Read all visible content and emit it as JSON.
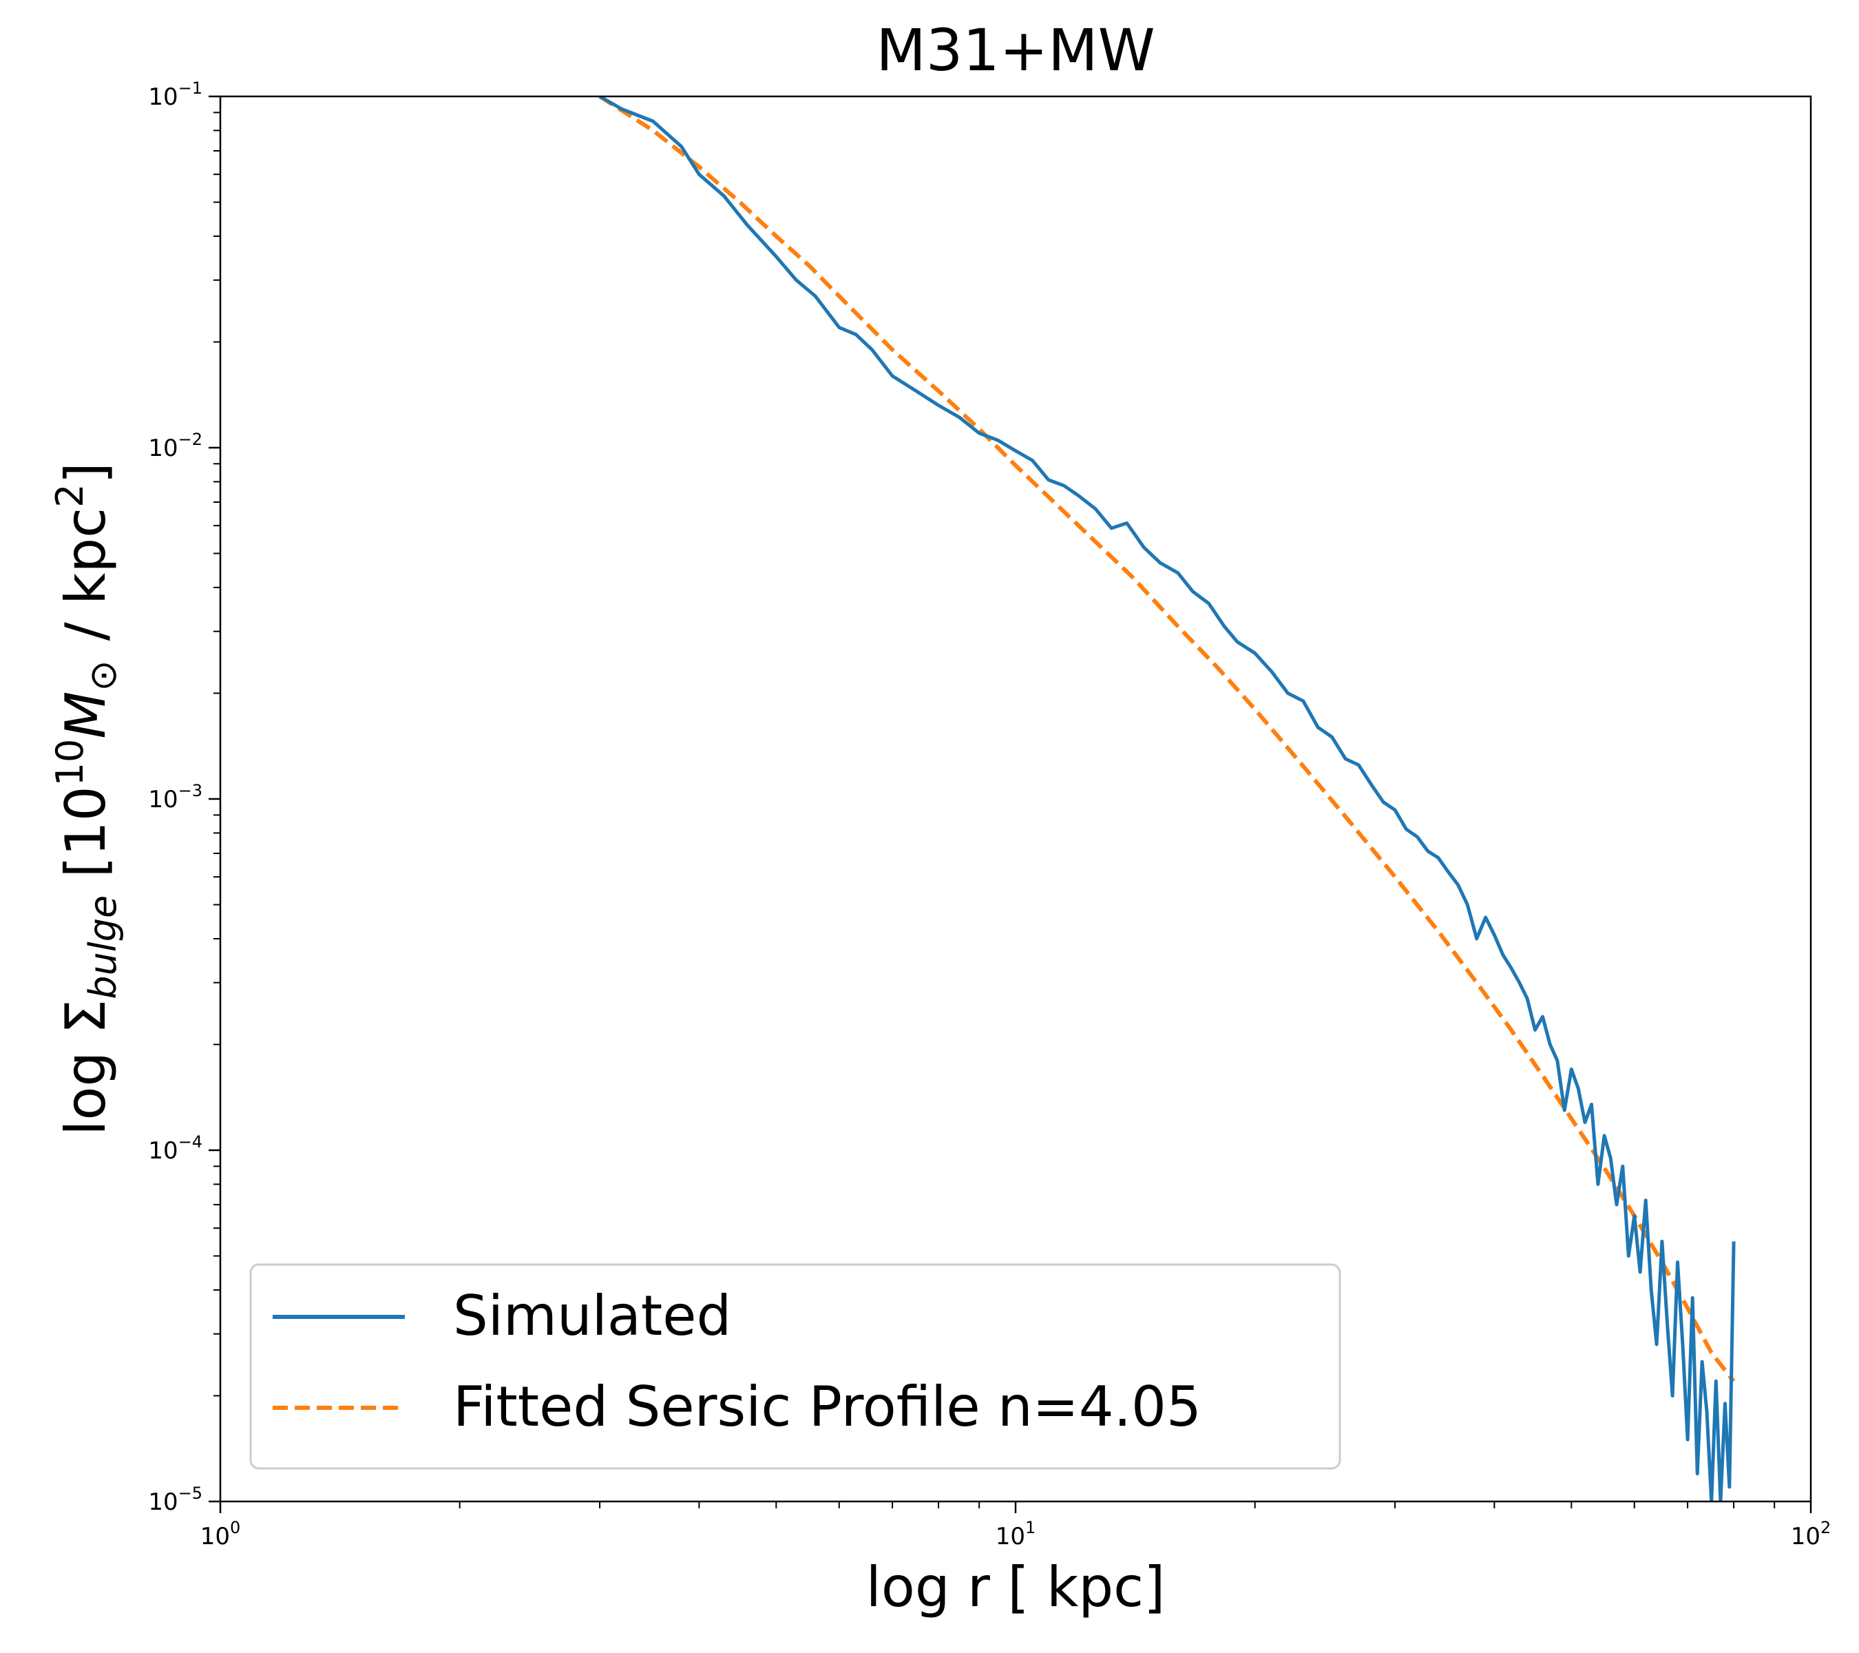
{
  "chart_data": {
    "type": "line",
    "title": "M31+MW",
    "xlabel": "log r [ kpc]",
    "ylabel": {
      "prefix": "log Σ",
      "subscript": "bulge",
      "bracket_open": " [10",
      "exponent": "10",
      "unit_symbol": "M",
      "unit_subscript": "⊙",
      "tail": "/ kpc",
      "tail_exponent": "2",
      "bracket_close": "]"
    },
    "x_scale": "log",
    "y_scale": "log",
    "xlim": [
      1,
      100
    ],
    "ylim": [
      1e-05,
      0.1
    ],
    "x_ticks": [
      {
        "value": 1,
        "base": "10",
        "exp": "0"
      },
      {
        "value": 10,
        "base": "10",
        "exp": "1"
      },
      {
        "value": 100,
        "base": "10",
        "exp": "2"
      }
    ],
    "y_ticks": [
      {
        "value": 0.1,
        "base": "10",
        "exp": "−1"
      },
      {
        "value": 0.01,
        "base": "10",
        "exp": "−2"
      },
      {
        "value": 0.001,
        "base": "10",
        "exp": "−3"
      },
      {
        "value": 0.0001,
        "base": "10",
        "exp": "−4"
      },
      {
        "value": 1e-05,
        "base": "10",
        "exp": "−5"
      }
    ],
    "grid": false,
    "legend_position": "lower-left",
    "series": [
      {
        "name": "Simulated",
        "style": "solid",
        "color": "#1f77b4",
        "x": [
          3.0,
          3.2,
          3.5,
          3.8,
          4.0,
          4.3,
          4.6,
          5.0,
          5.3,
          5.6,
          6.0,
          6.3,
          6.6,
          7.0,
          7.5,
          8.0,
          8.5,
          9.0,
          9.5,
          10.0,
          10.5,
          11.0,
          11.5,
          12.0,
          12.6,
          13.2,
          13.8,
          14.5,
          15.2,
          16.0,
          16.7,
          17.5,
          18.3,
          19.0,
          20.0,
          21.0,
          22.0,
          23.0,
          24.0,
          25.0,
          26.0,
          27.0,
          28.0,
          29.0,
          30.0,
          31.0,
          32.0,
          33.0,
          34.0,
          35.0,
          36.0,
          37.0,
          38.0,
          39.0,
          40.0,
          41.0,
          42.0,
          43.0,
          44.0,
          45.0,
          46.0,
          47.0,
          48.0,
          49.0,
          50.0,
          51.0,
          52.0,
          53.0,
          54.0,
          55.0,
          56.0,
          57.0,
          58.0,
          59.0,
          60.0,
          61.0,
          62.0,
          63.0,
          64.0,
          65.0,
          66.0,
          67.0,
          68.0,
          69.0,
          70.0,
          71.0,
          72.0,
          73.0,
          74.0,
          75.0,
          76.0,
          77.0,
          78.0,
          79.0,
          80.0
        ],
        "y": [
          0.1,
          0.092,
          0.085,
          0.072,
          0.06,
          0.052,
          0.043,
          0.035,
          0.03,
          0.027,
          0.022,
          0.021,
          0.019,
          0.016,
          0.0145,
          0.0132,
          0.0122,
          0.011,
          0.0105,
          0.0098,
          0.0092,
          0.0081,
          0.0078,
          0.0073,
          0.0067,
          0.0059,
          0.0061,
          0.0052,
          0.0047,
          0.0044,
          0.0039,
          0.0036,
          0.0031,
          0.0028,
          0.0026,
          0.0023,
          0.002,
          0.0019,
          0.0016,
          0.0015,
          0.0013,
          0.00125,
          0.0011,
          0.00098,
          0.00093,
          0.00082,
          0.00078,
          0.00071,
          0.00068,
          0.00062,
          0.00057,
          0.0005,
          0.0004,
          0.00046,
          0.00041,
          0.00036,
          0.00033,
          0.0003,
          0.00027,
          0.00022,
          0.00024,
          0.0002,
          0.00018,
          0.00013,
          0.00017,
          0.00015,
          0.00012,
          0.000135,
          8e-05,
          0.00011,
          9.5e-05,
          7e-05,
          9e-05,
          5e-05,
          6.5e-05,
          4.5e-05,
          7.2e-05,
          4e-05,
          2.8e-05,
          5.5e-05,
          3.2e-05,
          2e-05,
          4.8e-05,
          2.8e-05,
          1.5e-05,
          3.8e-05,
          1.2e-05,
          2.5e-05,
          1.8e-05,
          1e-05,
          2.2e-05,
          1e-05,
          1.9e-05,
          1.1e-05,
          5.5e-05
        ]
      },
      {
        "name": "Fitted Sersic Profile n=4.05",
        "style": "dashed",
        "color": "#ff7f0e",
        "x": [
          3.0,
          3.5,
          4.0,
          4.5,
          5.0,
          5.5,
          6.0,
          7.0,
          8.0,
          9.0,
          10.0,
          12.0,
          14.0,
          16.0,
          18.0,
          20.0,
          23.0,
          26.0,
          30.0,
          34.0,
          38.0,
          42.0,
          46.0,
          50.0,
          55.0,
          60.0,
          65.0,
          70.0,
          75.0,
          80.0
        ],
        "y": [
          0.1,
          0.08,
          0.063,
          0.05,
          0.04,
          0.033,
          0.027,
          0.019,
          0.0145,
          0.0113,
          0.0089,
          0.006,
          0.0043,
          0.0031,
          0.00235,
          0.0018,
          0.00124,
          0.00089,
          0.0006,
          0.00042,
          0.0003,
          0.00022,
          0.000163,
          0.000123,
          8.9e-05,
          6.5e-05,
          4.8e-05,
          3.55e-05,
          2.65e-05,
          2.2e-05
        ]
      }
    ]
  }
}
